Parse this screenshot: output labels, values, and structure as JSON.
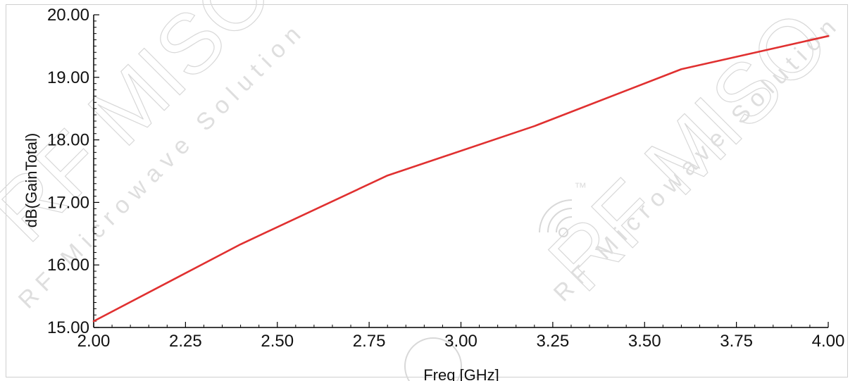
{
  "colors": {
    "series": "#e03030",
    "axis": "#000000",
    "frame": "#cfcfcf",
    "watermark": "#d8d8d8"
  },
  "watermark": {
    "brand": "RF MISO",
    "tagline": "RF Microwave Solution",
    "tm": "™"
  },
  "chart_data": {
    "type": "line",
    "xlabel": "Freq [GHz]",
    "ylabel": "dB(GainTotal)",
    "xlim": [
      2.0,
      4.0
    ],
    "ylim": [
      15.0,
      20.0
    ],
    "x_ticks": [
      "2.00",
      "2.25",
      "2.50",
      "2.75",
      "3.00",
      "3.25",
      "3.50",
      "3.75",
      "4.00"
    ],
    "y_ticks": [
      "15.00",
      "16.00",
      "17.00",
      "18.00",
      "19.00",
      "20.00"
    ],
    "grid": false,
    "series": [
      {
        "x": [
          2.0,
          2.4,
          2.8,
          3.2,
          3.6,
          4.0
        ],
        "y": [
          15.1,
          16.33,
          17.43,
          18.22,
          19.13,
          19.66
        ]
      }
    ]
  }
}
